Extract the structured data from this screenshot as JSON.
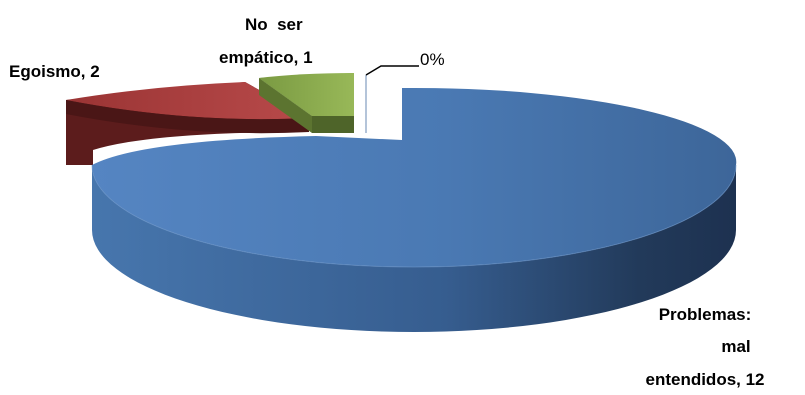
{
  "chart_data": {
    "type": "pie",
    "style": "3d-exploded",
    "slices": [
      {
        "label": "Problemas: mal entendidos",
        "value": 12,
        "color": "#4a7ab5",
        "display": "Problemas: mal entendidos, 12"
      },
      {
        "label": "Egoismo",
        "value": 2,
        "color": "#8e2f2f",
        "display": "Egoismo, 2"
      },
      {
        "label": "No ser empático",
        "value": 1,
        "color": "#8cae4f",
        "display": "No ser empático, 1"
      },
      {
        "label": "",
        "value": 0,
        "color": "#7b9fcf",
        "display": "0%"
      }
    ],
    "labels": {
      "main_lines": [
        "Problemas:",
        "mal",
        "entendidos, 12"
      ],
      "egoismo": "Egoismo, 2",
      "empatico_lines": [
        "No  ser",
        "empático, 1"
      ],
      "zero": "0%"
    },
    "title": "",
    "legend": "none"
  }
}
